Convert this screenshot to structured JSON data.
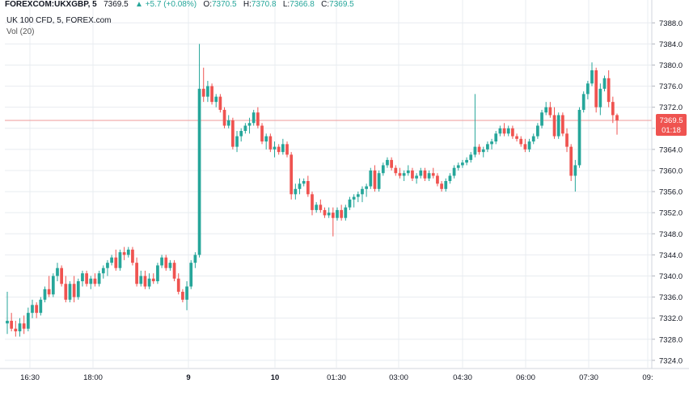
{
  "header": {
    "symbol": "FOREXCOM:UKXGBP, 5",
    "last": "7369.5",
    "change_arrow": "▲",
    "change": "+5.7 (+0.08%)",
    "o_label": "O:",
    "o_value": "7370.5",
    "h_label": "H:",
    "h_value": "7370.8",
    "l_label": "L:",
    "l_value": "7366.8",
    "c_label": "C:",
    "c_value": "7369.5"
  },
  "series_title": "UK 100 CFD, 5, FOREX.com",
  "volume_label": "Vol (20)",
  "price_tag": {
    "price": "7369.5",
    "countdown": "01:18"
  },
  "colors": {
    "up": "#26a69a",
    "down": "#ef5350",
    "grid": "#e8ecf0",
    "price_line": "#ef9a9a",
    "axis_text": "#131722"
  },
  "chart_data": {
    "type": "candlestick",
    "title": "",
    "y_axis": {
      "ticks": [
        7324.0,
        7328.0,
        7332.0,
        7336.0,
        7340.0,
        7344.0,
        7348.0,
        7352.0,
        7356.0,
        7360.0,
        7364.0,
        7368.0,
        7372.0,
        7376.0,
        7380.0,
        7384.0,
        7388.0
      ],
      "range": [
        7322.6,
        7390.8
      ]
    },
    "x_axis": {
      "ticks": [
        "16:30",
        "18:00",
        "9",
        "10",
        "01:30",
        "03:00",
        "04:30",
        "06:00",
        "07:30",
        "09:"
      ],
      "bold_ticks": [
        "9",
        "10"
      ]
    },
    "current_price": 7369.5,
    "candles": [
      {
        "o": 7331.0,
        "h": 7337.0,
        "l": 7329.0,
        "c": 7331.5
      },
      {
        "o": 7331.5,
        "h": 7333.0,
        "l": 7329.5,
        "c": 7330.0
      },
      {
        "o": 7330.0,
        "h": 7331.5,
        "l": 7328.5,
        "c": 7329.5
      },
      {
        "o": 7329.5,
        "h": 7332.0,
        "l": 7328.5,
        "c": 7331.0
      },
      {
        "o": 7331.0,
        "h": 7332.5,
        "l": 7329.0,
        "c": 7330.0
      },
      {
        "o": 7330.0,
        "h": 7334.0,
        "l": 7329.5,
        "c": 7333.0
      },
      {
        "o": 7333.0,
        "h": 7335.5,
        "l": 7332.0,
        "c": 7334.5
      },
      {
        "o": 7334.5,
        "h": 7335.0,
        "l": 7332.0,
        "c": 7333.0
      },
      {
        "o": 7333.0,
        "h": 7336.0,
        "l": 7332.5,
        "c": 7335.5
      },
      {
        "o": 7335.5,
        "h": 7338.0,
        "l": 7335.0,
        "c": 7337.5
      },
      {
        "o": 7337.5,
        "h": 7340.0,
        "l": 7336.0,
        "c": 7336.5
      },
      {
        "o": 7336.5,
        "h": 7340.5,
        "l": 7336.0,
        "c": 7340.0
      },
      {
        "o": 7340.0,
        "h": 7342.5,
        "l": 7339.0,
        "c": 7341.5
      },
      {
        "o": 7341.5,
        "h": 7342.0,
        "l": 7338.0,
        "c": 7338.5
      },
      {
        "o": 7338.5,
        "h": 7340.0,
        "l": 7335.0,
        "c": 7335.5
      },
      {
        "o": 7335.5,
        "h": 7339.0,
        "l": 7335.0,
        "c": 7338.5
      },
      {
        "o": 7338.5,
        "h": 7340.0,
        "l": 7335.0,
        "c": 7336.0
      },
      {
        "o": 7336.0,
        "h": 7339.5,
        "l": 7335.5,
        "c": 7339.0
      },
      {
        "o": 7339.0,
        "h": 7341.0,
        "l": 7338.0,
        "c": 7340.5
      },
      {
        "o": 7340.5,
        "h": 7341.0,
        "l": 7338.0,
        "c": 7338.5
      },
      {
        "o": 7338.5,
        "h": 7340.0,
        "l": 7337.5,
        "c": 7339.5
      },
      {
        "o": 7339.5,
        "h": 7340.5,
        "l": 7338.0,
        "c": 7338.5
      },
      {
        "o": 7338.5,
        "h": 7341.0,
        "l": 7338.0,
        "c": 7340.5
      },
      {
        "o": 7340.5,
        "h": 7342.0,
        "l": 7339.5,
        "c": 7341.5
      },
      {
        "o": 7341.5,
        "h": 7343.0,
        "l": 7340.0,
        "c": 7342.5
      },
      {
        "o": 7342.5,
        "h": 7344.0,
        "l": 7342.0,
        "c": 7343.5
      },
      {
        "o": 7343.5,
        "h": 7345.0,
        "l": 7341.0,
        "c": 7341.5
      },
      {
        "o": 7341.5,
        "h": 7345.0,
        "l": 7341.0,
        "c": 7344.5
      },
      {
        "o": 7344.5,
        "h": 7345.5,
        "l": 7343.0,
        "c": 7344.0
      },
      {
        "o": 7344.0,
        "h": 7345.5,
        "l": 7343.5,
        "c": 7345.0
      },
      {
        "o": 7345.0,
        "h": 7345.5,
        "l": 7342.0,
        "c": 7342.5
      },
      {
        "o": 7342.5,
        "h": 7343.5,
        "l": 7338.0,
        "c": 7338.5
      },
      {
        "o": 7338.5,
        "h": 7341.0,
        "l": 7338.0,
        "c": 7340.0
      },
      {
        "o": 7340.0,
        "h": 7341.0,
        "l": 7337.5,
        "c": 7338.0
      },
      {
        "o": 7338.0,
        "h": 7340.5,
        "l": 7337.5,
        "c": 7339.5
      },
      {
        "o": 7339.5,
        "h": 7340.5,
        "l": 7338.5,
        "c": 7339.0
      },
      {
        "o": 7339.0,
        "h": 7342.5,
        "l": 7338.5,
        "c": 7342.0
      },
      {
        "o": 7342.0,
        "h": 7344.0,
        "l": 7341.5,
        "c": 7343.5
      },
      {
        "o": 7343.5,
        "h": 7344.0,
        "l": 7341.0,
        "c": 7341.5
      },
      {
        "o": 7341.5,
        "h": 7343.0,
        "l": 7341.0,
        "c": 7342.5
      },
      {
        "o": 7342.5,
        "h": 7343.0,
        "l": 7339.0,
        "c": 7339.5
      },
      {
        "o": 7339.5,
        "h": 7340.5,
        "l": 7336.5,
        "c": 7337.0
      },
      {
        "o": 7337.0,
        "h": 7337.5,
        "l": 7335.0,
        "c": 7335.5
      },
      {
        "o": 7335.5,
        "h": 7339.0,
        "l": 7333.5,
        "c": 7338.0
      },
      {
        "o": 7338.0,
        "h": 7343.0,
        "l": 7337.5,
        "c": 7342.5
      },
      {
        "o": 7342.5,
        "h": 7344.5,
        "l": 7341.5,
        "c": 7344.0
      },
      {
        "o": 7344.0,
        "h": 7384.0,
        "l": 7343.5,
        "c": 7375.5
      },
      {
        "o": 7375.5,
        "h": 7379.5,
        "l": 7373.0,
        "c": 7374.0
      },
      {
        "o": 7374.0,
        "h": 7377.0,
        "l": 7373.0,
        "c": 7376.0
      },
      {
        "o": 7376.0,
        "h": 7376.5,
        "l": 7372.5,
        "c": 7373.0
      },
      {
        "o": 7373.0,
        "h": 7374.5,
        "l": 7372.0,
        "c": 7374.0
      },
      {
        "o": 7374.0,
        "h": 7374.5,
        "l": 7371.0,
        "c": 7371.5
      },
      {
        "o": 7371.5,
        "h": 7372.0,
        "l": 7368.0,
        "c": 7368.5
      },
      {
        "o": 7368.5,
        "h": 7370.5,
        "l": 7368.0,
        "c": 7369.5
      },
      {
        "o": 7369.5,
        "h": 7370.0,
        "l": 7364.0,
        "c": 7364.5
      },
      {
        "o": 7364.5,
        "h": 7367.5,
        "l": 7363.5,
        "c": 7366.5
      },
      {
        "o": 7366.5,
        "h": 7368.0,
        "l": 7365.5,
        "c": 7367.5
      },
      {
        "o": 7367.5,
        "h": 7369.0,
        "l": 7367.0,
        "c": 7368.5
      },
      {
        "o": 7368.5,
        "h": 7370.0,
        "l": 7367.0,
        "c": 7369.0
      },
      {
        "o": 7369.0,
        "h": 7371.5,
        "l": 7368.5,
        "c": 7371.0
      },
      {
        "o": 7371.0,
        "h": 7372.0,
        "l": 7368.0,
        "c": 7368.5
      },
      {
        "o": 7368.5,
        "h": 7369.0,
        "l": 7365.0,
        "c": 7365.5
      },
      {
        "o": 7365.5,
        "h": 7367.0,
        "l": 7364.0,
        "c": 7366.5
      },
      {
        "o": 7366.5,
        "h": 7367.0,
        "l": 7363.5,
        "c": 7364.0
      },
      {
        "o": 7364.0,
        "h": 7365.5,
        "l": 7362.5,
        "c": 7364.5
      },
      {
        "o": 7364.5,
        "h": 7365.0,
        "l": 7363.0,
        "c": 7363.5
      },
      {
        "o": 7363.5,
        "h": 7366.0,
        "l": 7363.0,
        "c": 7365.0
      },
      {
        "o": 7365.0,
        "h": 7365.5,
        "l": 7362.5,
        "c": 7363.0
      },
      {
        "o": 7363.0,
        "h": 7363.5,
        "l": 7354.5,
        "c": 7355.5
      },
      {
        "o": 7355.5,
        "h": 7357.5,
        "l": 7354.5,
        "c": 7356.5
      },
      {
        "o": 7356.5,
        "h": 7358.5,
        "l": 7355.5,
        "c": 7357.5
      },
      {
        "o": 7357.5,
        "h": 7358.5,
        "l": 7357.0,
        "c": 7358.0
      },
      {
        "o": 7358.0,
        "h": 7359.0,
        "l": 7355.0,
        "c": 7355.5
      },
      {
        "o": 7355.5,
        "h": 7356.0,
        "l": 7351.5,
        "c": 7352.5
      },
      {
        "o": 7352.5,
        "h": 7354.0,
        "l": 7352.0,
        "c": 7353.5
      },
      {
        "o": 7353.5,
        "h": 7354.5,
        "l": 7352.0,
        "c": 7352.5
      },
      {
        "o": 7352.5,
        "h": 7353.0,
        "l": 7351.0,
        "c": 7351.5
      },
      {
        "o": 7351.5,
        "h": 7353.0,
        "l": 7351.0,
        "c": 7352.0
      },
      {
        "o": 7352.0,
        "h": 7353.0,
        "l": 7347.5,
        "c": 7351.0
      },
      {
        "o": 7351.0,
        "h": 7353.0,
        "l": 7350.5,
        "c": 7352.5
      },
      {
        "o": 7352.5,
        "h": 7353.5,
        "l": 7350.5,
        "c": 7351.0
      },
      {
        "o": 7351.0,
        "h": 7353.5,
        "l": 7350.5,
        "c": 7353.0
      },
      {
        "o": 7353.0,
        "h": 7355.0,
        "l": 7352.5,
        "c": 7354.5
      },
      {
        "o": 7354.5,
        "h": 7355.5,
        "l": 7353.0,
        "c": 7355.0
      },
      {
        "o": 7355.0,
        "h": 7356.0,
        "l": 7354.0,
        "c": 7355.5
      },
      {
        "o": 7355.5,
        "h": 7357.0,
        "l": 7354.0,
        "c": 7356.5
      },
      {
        "o": 7356.5,
        "h": 7357.5,
        "l": 7355.0,
        "c": 7357.0
      },
      {
        "o": 7357.0,
        "h": 7360.5,
        "l": 7356.5,
        "c": 7360.0
      },
      {
        "o": 7360.0,
        "h": 7361.0,
        "l": 7356.0,
        "c": 7356.5
      },
      {
        "o": 7356.5,
        "h": 7360.0,
        "l": 7356.0,
        "c": 7359.5
      },
      {
        "o": 7359.5,
        "h": 7361.5,
        "l": 7359.0,
        "c": 7361.0
      },
      {
        "o": 7361.0,
        "h": 7362.5,
        "l": 7360.5,
        "c": 7362.0
      },
      {
        "o": 7362.0,
        "h": 7362.5,
        "l": 7360.0,
        "c": 7360.5
      },
      {
        "o": 7360.5,
        "h": 7361.0,
        "l": 7359.0,
        "c": 7359.5
      },
      {
        "o": 7359.5,
        "h": 7360.5,
        "l": 7358.5,
        "c": 7359.0
      },
      {
        "o": 7359.0,
        "h": 7360.0,
        "l": 7358.0,
        "c": 7359.5
      },
      {
        "o": 7359.5,
        "h": 7361.0,
        "l": 7359.0,
        "c": 7360.0
      },
      {
        "o": 7360.0,
        "h": 7360.5,
        "l": 7358.0,
        "c": 7358.5
      },
      {
        "o": 7358.5,
        "h": 7359.5,
        "l": 7357.5,
        "c": 7359.0
      },
      {
        "o": 7359.0,
        "h": 7360.5,
        "l": 7358.5,
        "c": 7360.0
      },
      {
        "o": 7360.0,
        "h": 7360.5,
        "l": 7358.0,
        "c": 7358.5
      },
      {
        "o": 7358.5,
        "h": 7360.0,
        "l": 7358.0,
        "c": 7359.5
      },
      {
        "o": 7359.5,
        "h": 7360.5,
        "l": 7358.5,
        "c": 7359.0
      },
      {
        "o": 7359.0,
        "h": 7359.5,
        "l": 7357.0,
        "c": 7357.5
      },
      {
        "o": 7357.5,
        "h": 7358.0,
        "l": 7356.0,
        "c": 7356.5
      },
      {
        "o": 7356.5,
        "h": 7358.5,
        "l": 7356.0,
        "c": 7358.0
      },
      {
        "o": 7358.0,
        "h": 7359.5,
        "l": 7357.5,
        "c": 7359.0
      },
      {
        "o": 7359.0,
        "h": 7361.0,
        "l": 7358.5,
        "c": 7360.5
      },
      {
        "o": 7360.5,
        "h": 7361.5,
        "l": 7360.0,
        "c": 7361.0
      },
      {
        "o": 7361.0,
        "h": 7362.0,
        "l": 7360.5,
        "c": 7361.5
      },
      {
        "o": 7361.5,
        "h": 7362.5,
        "l": 7361.0,
        "c": 7362.0
      },
      {
        "o": 7362.0,
        "h": 7363.5,
        "l": 7361.5,
        "c": 7363.0
      },
      {
        "o": 7363.0,
        "h": 7374.5,
        "l": 7362.5,
        "c": 7364.5
      },
      {
        "o": 7364.5,
        "h": 7365.0,
        "l": 7363.0,
        "c": 7363.5
      },
      {
        "o": 7363.5,
        "h": 7364.5,
        "l": 7362.5,
        "c": 7364.0
      },
      {
        "o": 7364.0,
        "h": 7365.5,
        "l": 7363.5,
        "c": 7365.0
      },
      {
        "o": 7365.0,
        "h": 7366.0,
        "l": 7364.0,
        "c": 7365.5
      },
      {
        "o": 7365.5,
        "h": 7367.5,
        "l": 7365.0,
        "c": 7367.0
      },
      {
        "o": 7367.0,
        "h": 7368.5,
        "l": 7366.5,
        "c": 7368.0
      },
      {
        "o": 7368.0,
        "h": 7369.0,
        "l": 7366.5,
        "c": 7367.0
      },
      {
        "o": 7367.0,
        "h": 7368.5,
        "l": 7366.5,
        "c": 7368.0
      },
      {
        "o": 7368.0,
        "h": 7368.5,
        "l": 7366.0,
        "c": 7366.5
      },
      {
        "o": 7366.5,
        "h": 7367.0,
        "l": 7365.5,
        "c": 7366.0
      },
      {
        "o": 7366.0,
        "h": 7366.5,
        "l": 7364.5,
        "c": 7365.0
      },
      {
        "o": 7365.0,
        "h": 7366.0,
        "l": 7363.5,
        "c": 7364.0
      },
      {
        "o": 7364.0,
        "h": 7366.0,
        "l": 7363.5,
        "c": 7365.5
      },
      {
        "o": 7365.5,
        "h": 7367.0,
        "l": 7365.0,
        "c": 7366.5
      },
      {
        "o": 7366.5,
        "h": 7369.0,
        "l": 7366.0,
        "c": 7368.5
      },
      {
        "o": 7368.5,
        "h": 7371.5,
        "l": 7368.0,
        "c": 7371.0
      },
      {
        "o": 7371.0,
        "h": 7373.0,
        "l": 7370.5,
        "c": 7372.0
      },
      {
        "o": 7372.0,
        "h": 7373.0,
        "l": 7370.0,
        "c": 7370.5
      },
      {
        "o": 7370.5,
        "h": 7372.0,
        "l": 7366.0,
        "c": 7366.5
      },
      {
        "o": 7366.5,
        "h": 7371.0,
        "l": 7366.0,
        "c": 7370.5
      },
      {
        "o": 7370.5,
        "h": 7371.0,
        "l": 7366.5,
        "c": 7367.0
      },
      {
        "o": 7367.0,
        "h": 7368.0,
        "l": 7363.5,
        "c": 7364.5
      },
      {
        "o": 7364.5,
        "h": 7365.0,
        "l": 7358.0,
        "c": 7359.0
      },
      {
        "o": 7359.0,
        "h": 7362.0,
        "l": 7356.0,
        "c": 7361.0
      },
      {
        "o": 7361.0,
        "h": 7372.0,
        "l": 7360.5,
        "c": 7371.5
      },
      {
        "o": 7371.5,
        "h": 7375.0,
        "l": 7371.0,
        "c": 7374.5
      },
      {
        "o": 7374.5,
        "h": 7377.0,
        "l": 7373.5,
        "c": 7376.5
      },
      {
        "o": 7376.5,
        "h": 7380.5,
        "l": 7376.0,
        "c": 7379.0
      },
      {
        "o": 7379.0,
        "h": 7379.5,
        "l": 7371.0,
        "c": 7372.0
      },
      {
        "o": 7372.0,
        "h": 7376.5,
        "l": 7370.5,
        "c": 7375.5
      },
      {
        "o": 7375.5,
        "h": 7378.0,
        "l": 7375.0,
        "c": 7377.5
      },
      {
        "o": 7377.5,
        "h": 7379.0,
        "l": 7372.0,
        "c": 7373.0
      },
      {
        "o": 7373.0,
        "h": 7374.0,
        "l": 7369.0,
        "c": 7370.5
      },
      {
        "o": 7370.5,
        "h": 7370.8,
        "l": 7366.8,
        "c": 7369.5
      }
    ]
  }
}
